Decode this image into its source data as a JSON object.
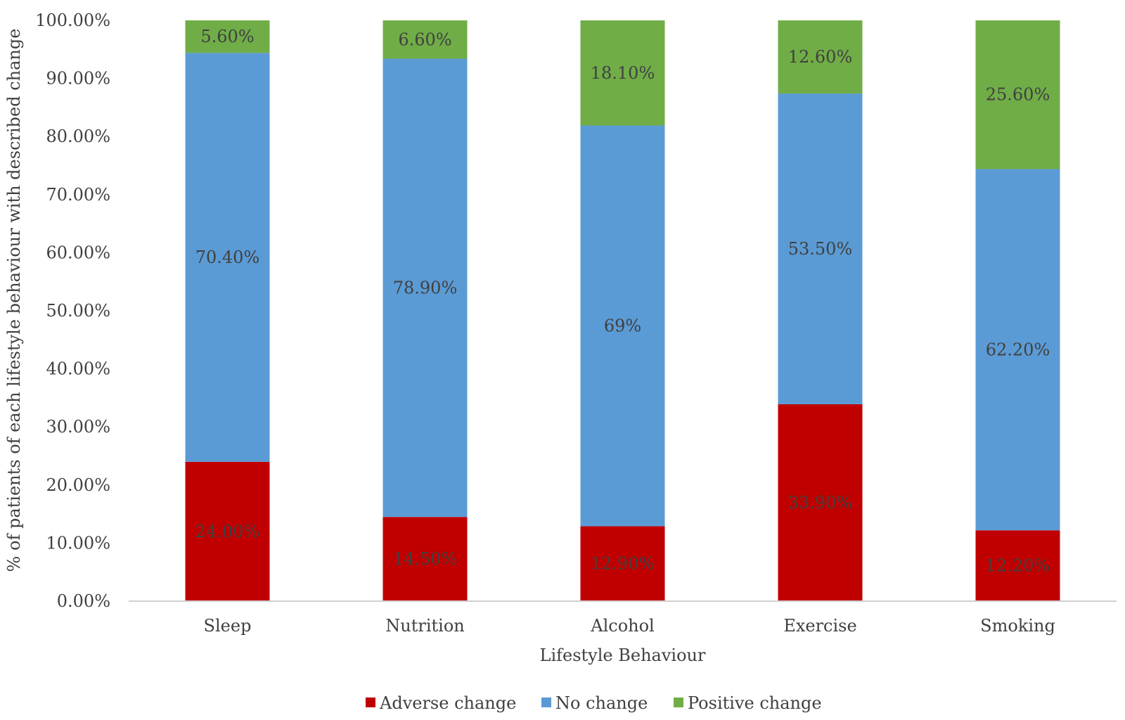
{
  "chart_data": {
    "type": "bar",
    "stacked": true,
    "title": "",
    "xlabel": "Lifestyle Behaviour",
    "ylabel": "% of patients of each lifestyle behaviour with described change",
    "ylim": [
      0,
      100
    ],
    "y_ticks": [
      "0.00%",
      "10.00%",
      "20.00%",
      "30.00%",
      "40.00%",
      "50.00%",
      "60.00%",
      "70.00%",
      "80.00%",
      "90.00%",
      "100.00%"
    ],
    "categories": [
      "Sleep",
      "Nutrition",
      "Alcohol",
      "Exercise",
      "Smoking"
    ],
    "series": [
      {
        "name": "Adverse change",
        "color": "#c00000",
        "values": [
          24.0,
          14.5,
          12.9,
          33.9,
          12.2
        ],
        "labels": [
          "24.00%",
          "14.50%",
          "12.90%",
          "33.90%",
          "12.20%"
        ]
      },
      {
        "name": "No change",
        "color": "#5b9bd5",
        "values": [
          70.4,
          78.9,
          69.0,
          53.5,
          62.2
        ],
        "labels": [
          "70.40%",
          "78.90%",
          "69%",
          "53.50%",
          "62.20%"
        ]
      },
      {
        "name": "Positive change",
        "color": "#70ad47",
        "values": [
          5.6,
          6.6,
          18.1,
          12.6,
          25.6
        ],
        "labels": [
          "5.60%",
          "6.60%",
          "18.10%",
          "12.60%",
          "25.60%"
        ]
      }
    ],
    "legend_position": "bottom"
  }
}
